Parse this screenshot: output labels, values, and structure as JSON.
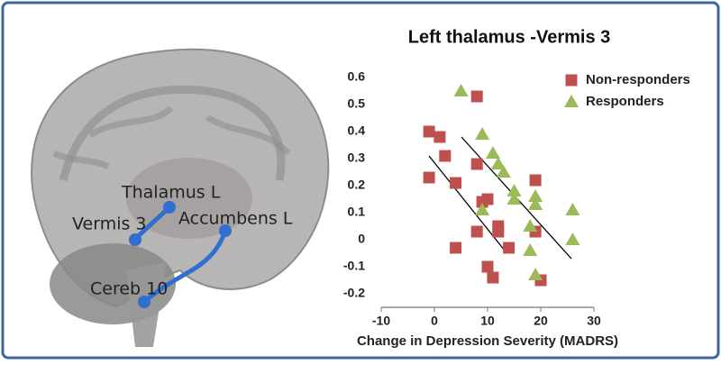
{
  "brain_labels": [
    "Thalamus L",
    "Vermis 3",
    "Accumbens L",
    "Cereb 10"
  ],
  "chart_data": {
    "type": "scatter",
    "title": "Left thalamus -Vermis 3",
    "x_label": "Change in Depression Severity (MADRS)",
    "xlim": [
      -10,
      30
    ],
    "xticks": [
      -10,
      0,
      10,
      20,
      30
    ],
    "ylim": [
      -0.25,
      0.62
    ],
    "yticks": [
      -0.2,
      -0.1,
      0,
      0.1,
      0.2,
      0.3,
      0.4,
      0.5,
      0.6
    ],
    "legend": "top-right",
    "grid": false,
    "series": [
      {
        "name": "Non-responders",
        "color": "#c0504d",
        "marker": "square",
        "x": [
          -1,
          1,
          2,
          -1,
          4,
          8,
          8,
          9,
          10,
          12,
          12,
          8,
          4,
          10,
          11,
          14,
          19,
          19,
          20
        ],
        "values": [
          0.4,
          0.38,
          0.31,
          0.23,
          0.21,
          0.53,
          0.28,
          0.14,
          0.15,
          0.05,
          0.03,
          0.03,
          -0.03,
          -0.1,
          -0.14,
          -0.03,
          0.22,
          0.03,
          -0.15
        ]
      },
      {
        "name": "Responders",
        "color": "#9bbb59",
        "marker": "triangle",
        "x": [
          5,
          9,
          11,
          12,
          13,
          15,
          15,
          9,
          19,
          19,
          18,
          18,
          19,
          26,
          26
        ],
        "values": [
          0.55,
          0.39,
          0.32,
          0.28,
          0.25,
          0.18,
          0.15,
          0.11,
          0.16,
          0.13,
          0.05,
          -0.04,
          -0.13,
          0.11,
          0
        ]
      }
    ]
  }
}
